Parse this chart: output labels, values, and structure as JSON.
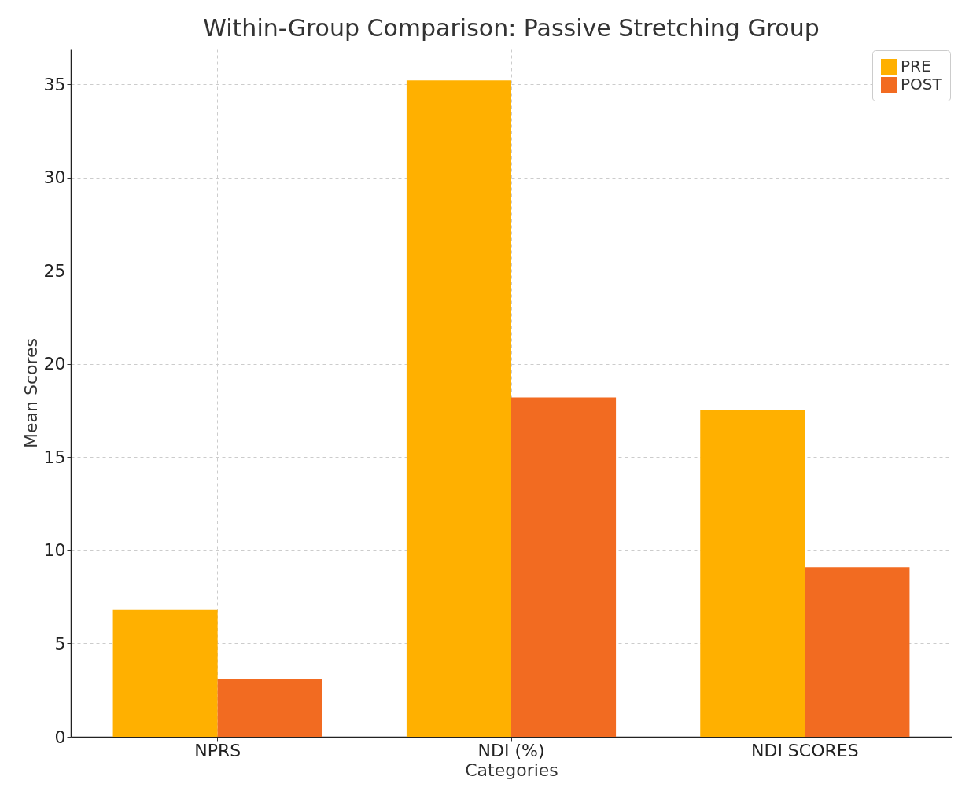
{
  "chart_data": {
    "type": "bar",
    "title": "Within-Group Comparison: Passive Stretching Group",
    "xlabel": "Categories",
    "ylabel": "Mean Scores",
    "categories": [
      "NPRS",
      "NDI (%)",
      "NDI SCORES"
    ],
    "series": [
      {
        "name": "PRE",
        "color": "#ffb000",
        "values": [
          6.8,
          35.2,
          17.5
        ]
      },
      {
        "name": "POST",
        "color": "#f26b21",
        "values": [
          3.1,
          18.2,
          9.1
        ]
      }
    ],
    "ylim": [
      0,
      36.9
    ],
    "yticks": [
      0,
      5,
      10,
      15,
      20,
      25,
      30,
      35
    ],
    "grid": true,
    "legend": "top right"
  }
}
